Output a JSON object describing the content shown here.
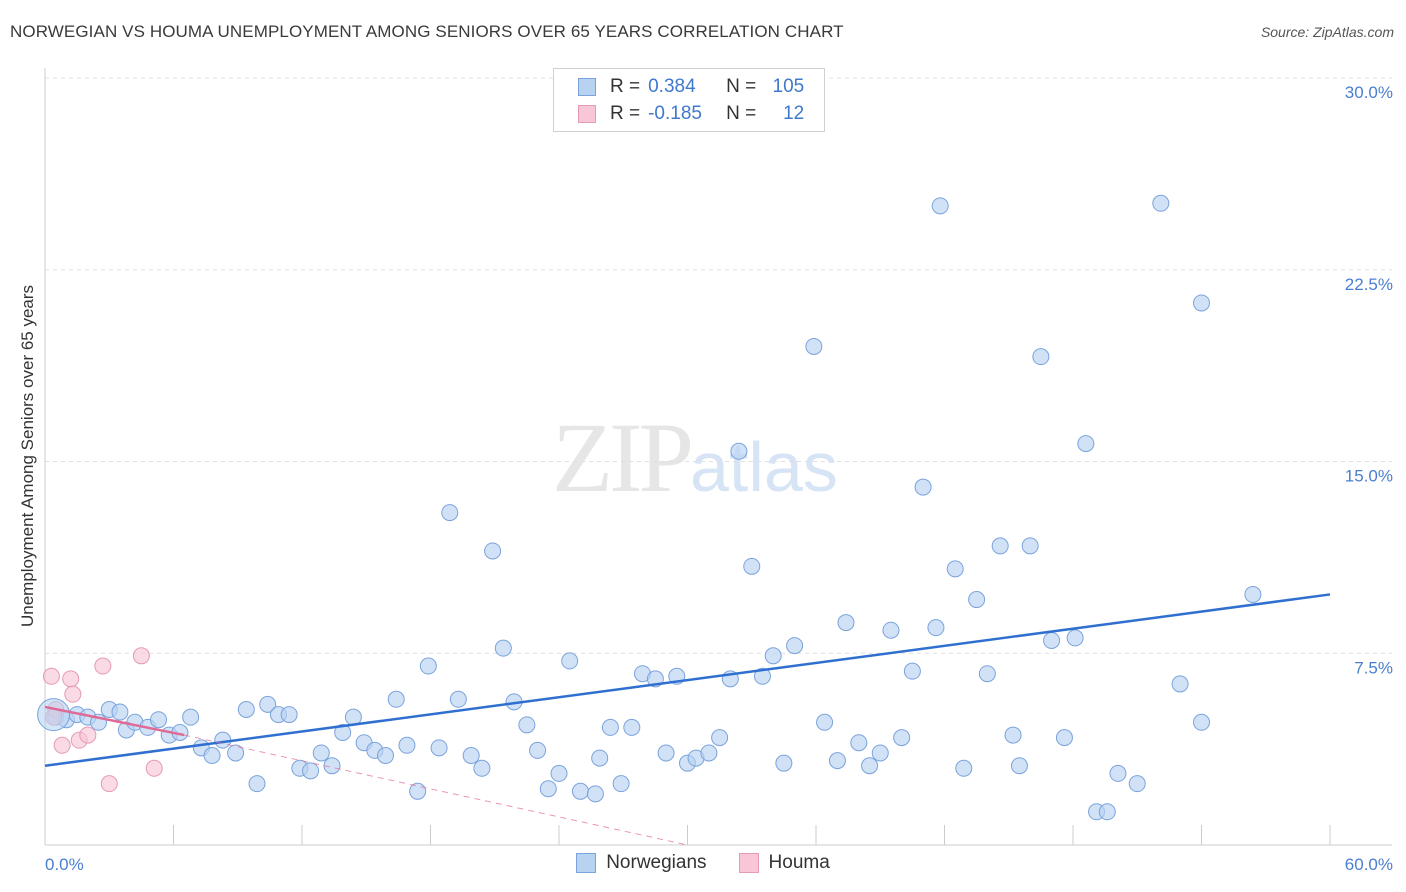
{
  "title": "NORWEGIAN VS HOUMA UNEMPLOYMENT AMONG SENIORS OVER 65 YEARS CORRELATION CHART",
  "source": "Source: ZipAtlas.com",
  "watermark": {
    "zip": "ZIP",
    "atlas": "atlas"
  },
  "legend": {
    "rows": [
      {
        "r_label": "R =",
        "r_value": "0.384",
        "n_label": "N =",
        "n_value": "105",
        "color": "#b8d3f2",
        "border": "#7aa3dc"
      },
      {
        "r_label": "R =",
        "r_value": "-0.185",
        "n_label": "N =",
        "n_value": "12",
        "color": "#f8c6d6",
        "border": "#e59ab3"
      }
    ]
  },
  "bottom_legend": [
    {
      "label": "Norwegians",
      "color": "#b8d3f2",
      "border": "#7aa3dc"
    },
    {
      "label": "Houma",
      "color": "#f8c6d6",
      "border": "#e59ab3"
    }
  ],
  "chart_data": {
    "type": "scatter",
    "title": "NORWEGIAN VS HOUMA UNEMPLOYMENT AMONG SENIORS OVER 65 YEARS CORRELATION CHART",
    "xlabel": "",
    "ylabel": "Unemployment Among Seniors over 65 years",
    "xlim": [
      0,
      60
    ],
    "ylim": [
      0,
      30
    ],
    "x_tick_labels": [
      "0.0%",
      "60.0%"
    ],
    "y_ticks": [
      7.5,
      15.0,
      22.5,
      30.0
    ],
    "y_tick_labels": [
      "7.5%",
      "15.0%",
      "22.5%",
      "30.0%"
    ],
    "grid": true,
    "series": [
      {
        "name": "Norwegians",
        "color": "#b8d3f2",
        "edge": "#7aa3dc",
        "trend": {
          "x": [
            0,
            60
          ],
          "y": [
            3.1,
            9.8
          ],
          "color": "#2f6fd0"
        },
        "points": [
          [
            0.5,
            5.0
          ],
          [
            1.0,
            4.9
          ],
          [
            1.5,
            5.1
          ],
          [
            2.0,
            5.0
          ],
          [
            2.5,
            4.8
          ],
          [
            3.0,
            5.3
          ],
          [
            3.5,
            5.2
          ],
          [
            3.8,
            4.5
          ],
          [
            4.2,
            4.8
          ],
          [
            4.8,
            4.6
          ],
          [
            5.3,
            4.9
          ],
          [
            5.8,
            4.3
          ],
          [
            6.3,
            4.4
          ],
          [
            6.8,
            5.0
          ],
          [
            7.3,
            3.8
          ],
          [
            7.8,
            3.5
          ],
          [
            8.3,
            4.1
          ],
          [
            8.9,
            3.6
          ],
          [
            9.4,
            5.3
          ],
          [
            9.9,
            2.4
          ],
          [
            10.4,
            5.5
          ],
          [
            10.9,
            5.1
          ],
          [
            11.4,
            5.1
          ],
          [
            11.9,
            3.0
          ],
          [
            12.4,
            2.9
          ],
          [
            12.9,
            3.6
          ],
          [
            13.4,
            3.1
          ],
          [
            13.9,
            4.4
          ],
          [
            14.4,
            5.0
          ],
          [
            14.9,
            4.0
          ],
          [
            15.4,
            3.7
          ],
          [
            15.9,
            3.5
          ],
          [
            16.4,
            5.7
          ],
          [
            16.9,
            3.9
          ],
          [
            17.4,
            2.1
          ],
          [
            17.9,
            7.0
          ],
          [
            18.4,
            3.8
          ],
          [
            18.9,
            13.0
          ],
          [
            19.3,
            5.7
          ],
          [
            19.9,
            3.5
          ],
          [
            20.4,
            3.0
          ],
          [
            20.9,
            11.5
          ],
          [
            21.4,
            7.7
          ],
          [
            21.9,
            5.6
          ],
          [
            22.5,
            4.7
          ],
          [
            23.0,
            3.7
          ],
          [
            23.5,
            2.2
          ],
          [
            24.0,
            2.8
          ],
          [
            24.5,
            7.2
          ],
          [
            25.0,
            2.1
          ],
          [
            25.7,
            2.0
          ],
          [
            25.9,
            3.4
          ],
          [
            26.4,
            4.6
          ],
          [
            26.9,
            2.4
          ],
          [
            27.4,
            4.6
          ],
          [
            27.9,
            6.7
          ],
          [
            28.5,
            6.5
          ],
          [
            29.0,
            3.6
          ],
          [
            29.5,
            6.6
          ],
          [
            30.0,
            3.2
          ],
          [
            30.4,
            3.4
          ],
          [
            31.0,
            3.6
          ],
          [
            31.5,
            4.2
          ],
          [
            32.0,
            6.5
          ],
          [
            32.4,
            15.4
          ],
          [
            33.0,
            10.9
          ],
          [
            33.5,
            6.6
          ],
          [
            34.0,
            7.4
          ],
          [
            34.5,
            3.2
          ],
          [
            35.0,
            7.8
          ],
          [
            35.9,
            19.5
          ],
          [
            36.4,
            4.8
          ],
          [
            37.0,
            3.3
          ],
          [
            37.4,
            8.7
          ],
          [
            38.0,
            4.0
          ],
          [
            38.5,
            3.1
          ],
          [
            39.0,
            3.6
          ],
          [
            39.5,
            8.4
          ],
          [
            40.0,
            4.2
          ],
          [
            40.5,
            6.8
          ],
          [
            41.0,
            14.0
          ],
          [
            41.6,
            8.5
          ],
          [
            41.8,
            25.0
          ],
          [
            42.5,
            10.8
          ],
          [
            42.9,
            3.0
          ],
          [
            43.5,
            9.6
          ],
          [
            44.0,
            6.7
          ],
          [
            44.6,
            11.7
          ],
          [
            45.2,
            4.3
          ],
          [
            45.5,
            3.1
          ],
          [
            46.0,
            11.7
          ],
          [
            46.5,
            19.1
          ],
          [
            47.0,
            8.0
          ],
          [
            47.6,
            4.2
          ],
          [
            48.1,
            8.1
          ],
          [
            48.6,
            15.7
          ],
          [
            49.1,
            1.3
          ],
          [
            49.6,
            1.3
          ],
          [
            50.1,
            2.8
          ],
          [
            51.0,
            2.4
          ],
          [
            52.1,
            25.1
          ],
          [
            53.0,
            6.3
          ],
          [
            54.0,
            21.2
          ],
          [
            54.0,
            4.8
          ],
          [
            56.4,
            9.8
          ]
        ]
      },
      {
        "name": "Houma",
        "color": "#f8c6d6",
        "edge": "#e59ab3",
        "trend": {
          "x": [
            0,
            6.5
          ],
          "y": [
            5.4,
            4.3
          ],
          "color": "#e06a95",
          "dashed_extension": {
            "x": [
              6.5,
              30
            ],
            "y": [
              4.3,
              0.0
            ]
          }
        },
        "points": [
          [
            0.3,
            6.6
          ],
          [
            0.5,
            5.3
          ],
          [
            0.8,
            3.9
          ],
          [
            1.2,
            6.5
          ],
          [
            1.3,
            5.9
          ],
          [
            1.6,
            4.1
          ],
          [
            2.0,
            4.3
          ],
          [
            2.7,
            7.0
          ],
          [
            3.0,
            2.4
          ],
          [
            4.5,
            7.4
          ],
          [
            5.1,
            3.0
          ],
          [
            0.4,
            5.0
          ]
        ]
      }
    ]
  }
}
